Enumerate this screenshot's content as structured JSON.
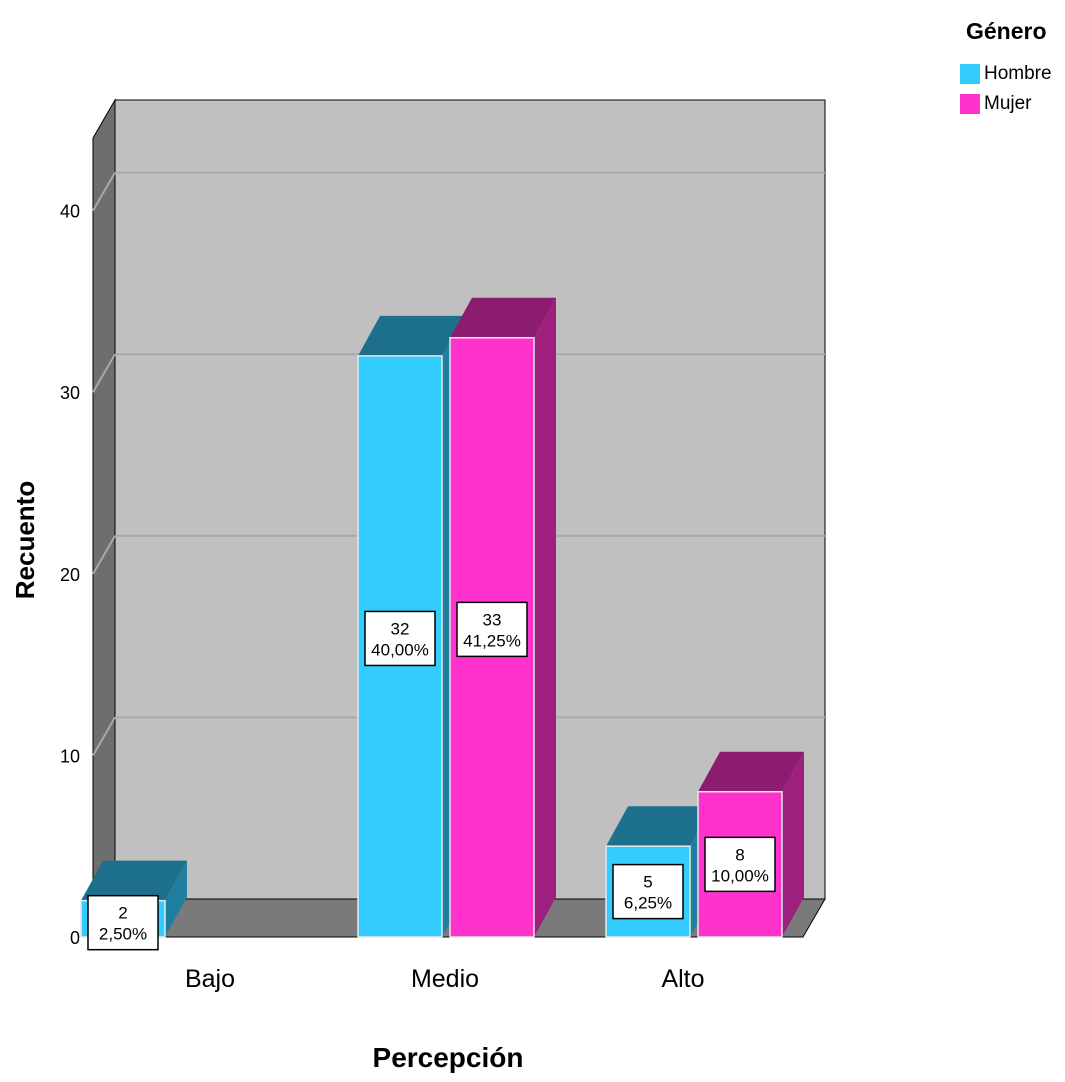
{
  "chart_data": {
    "type": "bar",
    "style": "3d-clustered",
    "xlabel": "Percepción",
    "ylabel": "Recuento",
    "categories": [
      "Bajo",
      "Medio",
      "Alto"
    ],
    "ylim": [
      0,
      44
    ],
    "yticks": [
      0,
      10,
      20,
      30,
      40
    ],
    "ytick_labels": [
      "0",
      "10",
      "20",
      "30",
      "40"
    ],
    "grid": true,
    "legend": {
      "title": "Género",
      "placement": "top-right",
      "entries": [
        "Hombre",
        "Mujer"
      ]
    },
    "series": [
      {
        "name": "Hombre",
        "color": "#33ccff",
        "values": [
          2,
          32,
          5
        ],
        "data_labels": [
          [
            "2",
            "2,50%"
          ],
          [
            "32",
            "40,00%"
          ],
          [
            "5",
            "6,25%"
          ]
        ]
      },
      {
        "name": "Mujer",
        "color": "#ff33cc",
        "values": [
          null,
          33,
          8
        ],
        "data_labels": [
          null,
          [
            "33",
            "41,25%"
          ],
          [
            "8",
            "10,00%"
          ]
        ]
      }
    ],
    "colors": {
      "plot_background": "#c0c0c0",
      "floor": "#7a7a7a",
      "side_wall": "#6e6e6e",
      "gridline": "#a9a9a9"
    }
  }
}
